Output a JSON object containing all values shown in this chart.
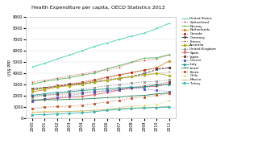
{
  "title": "Health Expenditure per capita, OECD Statistics 2013",
  "ylabel": "US$ PPP",
  "years": [
    2000,
    2001,
    2002,
    2003,
    2004,
    2005,
    2006,
    2007,
    2008,
    2009,
    2010,
    2011
  ],
  "countries": [
    "United States",
    "Switzerland",
    "Norway",
    "Netherlands",
    "Canada",
    "Germany",
    "France",
    "Australia",
    "United Kingdom",
    "Spain",
    "Japan",
    "Greece",
    "Italy",
    "Israel",
    "Korea",
    "Chile",
    "Mexico",
    "Turkey"
  ],
  "data": {
    "United States": [
      4559,
      4887,
      5267,
      5635,
      6001,
      6401,
      6697,
      7026,
      7317,
      7587,
      7997,
      8467
    ],
    "Switzerland": [
      3221,
      3387,
      3548,
      3781,
      3949,
      4178,
      4302,
      4530,
      4986,
      5144,
      5270,
      5634
    ],
    "Norway": [
      3040,
      3266,
      3448,
      3610,
      3830,
      4022,
      4408,
      4691,
      5003,
      5351,
      5388,
      5669
    ],
    "Netherlands": [
      2340,
      2524,
      2805,
      3007,
      3140,
      3349,
      3655,
      3837,
      4063,
      4290,
      4497,
      5099
    ],
    "Canada": [
      2535,
      2726,
      2913,
      3054,
      3230,
      3424,
      3665,
      3895,
      4079,
      4260,
      4445,
      4522
    ],
    "Germany": [
      2617,
      2734,
      2817,
      2996,
      3043,
      3204,
      3371,
      3510,
      3737,
      3972,
      4338,
      4495
    ],
    "France": [
      2546,
      2694,
      2838,
      3000,
      3155,
      3305,
      3450,
      3578,
      3697,
      3810,
      3970,
      4118
    ],
    "Australia": [
      2496,
      2620,
      2762,
      2887,
      3009,
      3204,
      3353,
      3572,
      3693,
      3877,
      3997,
      3800
    ],
    "United Kingdom": [
      1833,
      2025,
      2160,
      2428,
      2597,
      2724,
      2884,
      2992,
      3129,
      3233,
      3268,
      3405
    ],
    "Spain": [
      1529,
      1656,
      1774,
      1855,
      1945,
      2102,
      2265,
      2510,
      2671,
      2782,
      2831,
      3072
    ],
    "Japan": [
      1967,
      2054,
      2107,
      2174,
      2262,
      2358,
      2473,
      2578,
      2729,
      2878,
      3035,
      3213
    ],
    "Greece": [
      1511,
      1715,
      1878,
      2011,
      2183,
      2307,
      2404,
      2531,
      2686,
      2592,
      2471,
      2386
    ],
    "Italy": [
      2032,
      2163,
      2291,
      2340,
      2467,
      2531,
      2614,
      2686,
      2763,
      2773,
      2964,
      3012
    ],
    "Israel": [
      1618,
      1641,
      1630,
      1680,
      1699,
      1753,
      1826,
      1870,
      1976,
      2026,
      2165,
      2239
    ],
    "Korea": [
      862,
      960,
      1030,
      1074,
      1168,
      1289,
      1434,
      1591,
      1773,
      1879,
      2035,
      2198
    ],
    "Chile": [
      540,
      596,
      594,
      603,
      641,
      695,
      792,
      914,
      1077,
      1121,
      1202,
      1568
    ],
    "Mexico": [
      490,
      534,
      553,
      591,
      632,
      690,
      771,
      841,
      898,
      918,
      964,
      1049
    ],
    "Turkey": [
      283,
      311,
      370,
      431,
      496,
      572,
      695,
      776,
      868,
      906,
      941,
      984
    ]
  },
  "colors": {
    "United States": "#40d0b0",
    "Switzerland": "#d04040",
    "Norway": "#50b050",
    "Netherlands": "#d09030",
    "Canada": "#c03030",
    "Germany": "#303030",
    "France": "#b06060",
    "Australia": "#b0b020",
    "United Kingdom": "#707070",
    "Spain": "#e06060",
    "Japan": "#803030",
    "Greece": "#5050c0",
    "Italy": "#209090",
    "Israel": "#208050",
    "Korea": "#c05020",
    "Chile": "#c8c020",
    "Mexico": "#c8b878",
    "Turkey": "#30b0b0"
  },
  "linestyles": {
    "United States": "-",
    "Switzerland": ":",
    "Norway": "-",
    "Netherlands": "-",
    "Canada": ":",
    "Germany": "--",
    "France": ":",
    "Australia": "-",
    "United Kingdom": ":",
    "Spain": "-",
    "Japan": ":",
    "Greece": ":",
    "Italy": "-",
    "Israel": "-",
    "Korea": ":",
    "Chile": ":",
    "Mexico": "-",
    "Turkey": "-"
  },
  "markers": {
    "United States": "+",
    "Switzerland": "+",
    "Norway": "+",
    "Netherlands": "s",
    "Canada": "s",
    "Germany": "x",
    "France": "+",
    "Australia": "o",
    "United Kingdom": "x",
    "Spain": "v",
    "Japan": "s",
    "Greece": "s",
    "Italy": ">",
    "Israel": "|",
    "Korea": "s",
    "Chile": "+",
    "Mexico": "|",
    "Turkey": ">"
  },
  "ylim": [
    0,
    9000
  ],
  "yticks": [
    0,
    1000,
    2000,
    3000,
    4000,
    5000,
    6000,
    7000,
    8000,
    9000
  ],
  "background_color": "#ffffff",
  "grid_color": "#e0e0e0"
}
